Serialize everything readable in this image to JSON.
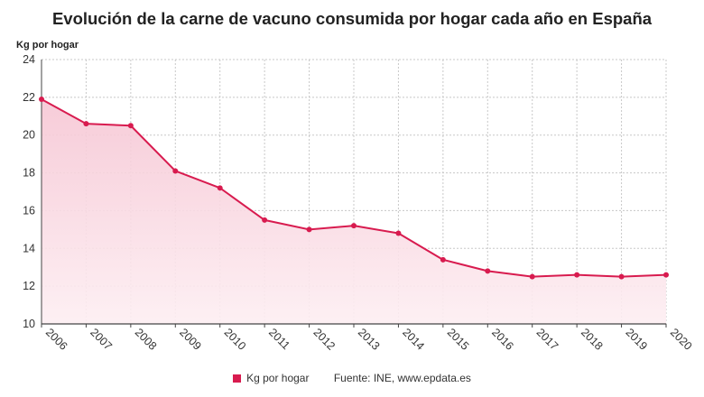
{
  "chart_data": {
    "type": "area",
    "title": "Evolución de la carne de vacuno consumida por hogar cada año en España",
    "ylabel": "Kg por hogar",
    "xlabel": "",
    "categories": [
      "2006",
      "2007",
      "2008",
      "2009",
      "2010",
      "2011",
      "2012",
      "2013",
      "2014",
      "2015",
      "2016",
      "2017",
      "2018",
      "2019",
      "2020"
    ],
    "series": [
      {
        "name": "Kg por hogar",
        "values": [
          21.9,
          20.6,
          20.5,
          18.1,
          17.2,
          15.5,
          15.0,
          15.2,
          14.8,
          13.4,
          12.8,
          12.5,
          12.6,
          12.5,
          12.6
        ]
      }
    ],
    "ylim": [
      10,
      24
    ],
    "yticks": [
      10,
      12,
      14,
      16,
      18,
      20,
      22,
      24
    ],
    "grid": true,
    "legend_position": "bottom",
    "source": "Fuente: INE, www.epdata.es",
    "colors": {
      "line": "#d81b4f",
      "fill_top": "#f6c6d4",
      "fill_bottom": "#fdeef2",
      "grid": "#c8c8c8",
      "axis": "#444444"
    }
  }
}
